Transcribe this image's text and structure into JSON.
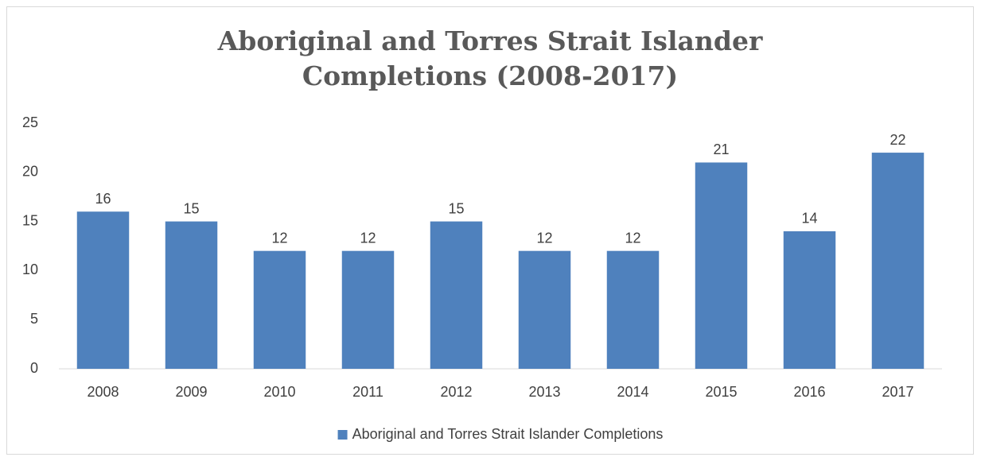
{
  "chart_data": {
    "type": "bar",
    "title": "Aboriginal and Torres Strait Islander Completions (2008-2017)",
    "categories": [
      "2008",
      "2009",
      "2010",
      "2011",
      "2012",
      "2013",
      "2014",
      "2015",
      "2016",
      "2017"
    ],
    "series": [
      {
        "name": "Aboriginal and Torres Strait Islander Completions",
        "color": "#4f81bd",
        "values": [
          16,
          15,
          12,
          12,
          15,
          12,
          12,
          21,
          14,
          22
        ]
      }
    ],
    "ylim": [
      0,
      25
    ],
    "yticks": [
      0,
      5,
      10,
      15,
      20,
      25
    ],
    "grid": false,
    "legend": "bottom"
  }
}
